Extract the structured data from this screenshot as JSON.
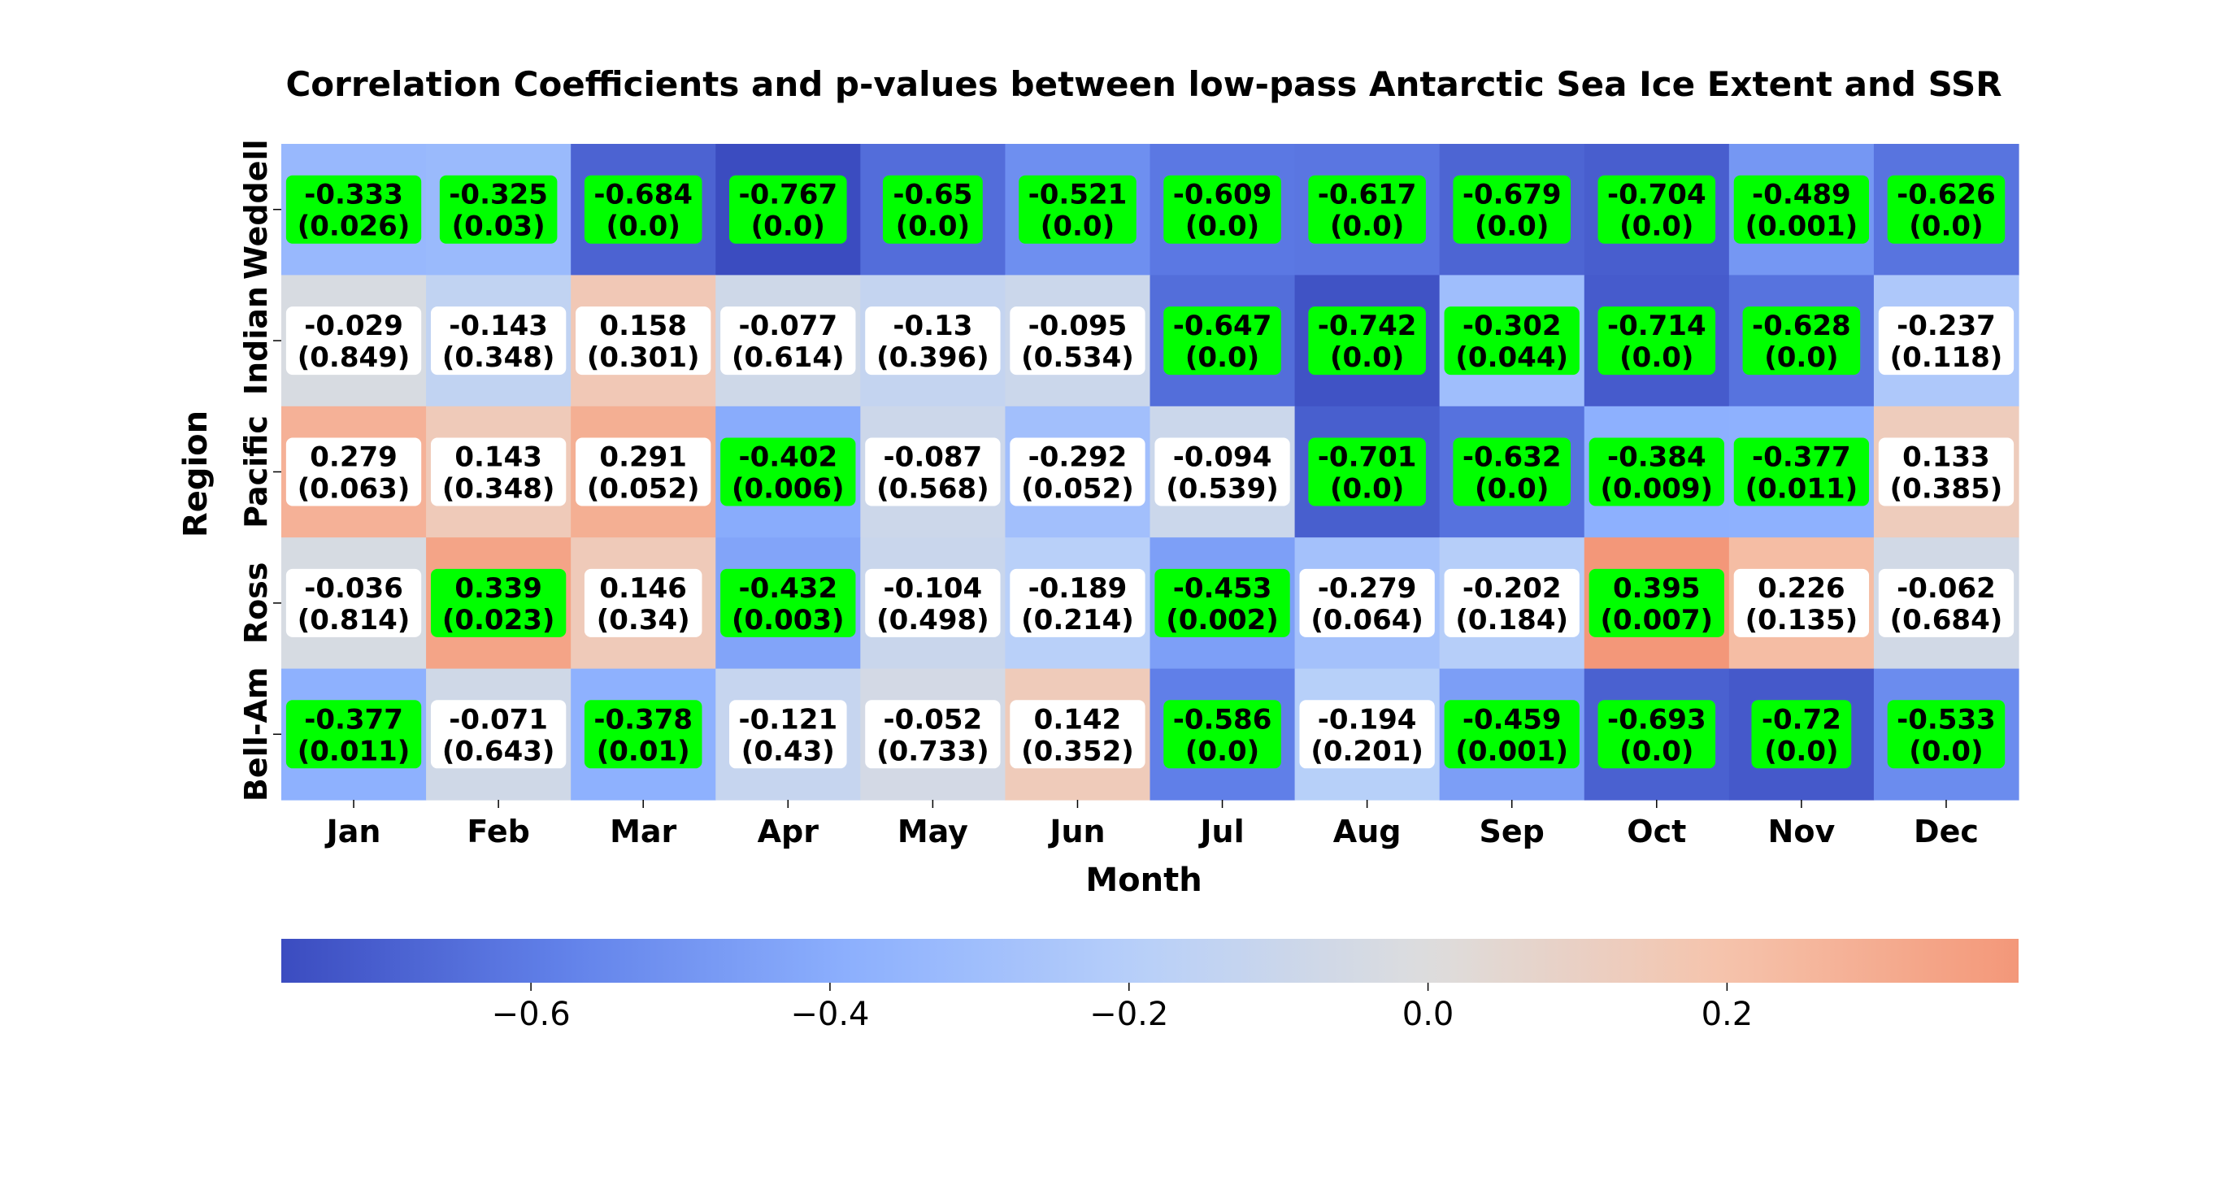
{
  "chart_data": {
    "type": "heatmap",
    "title": "Correlation Coefficients and p-values between low-pass Antarctic Sea Ice Extent and SSR",
    "xlabel": "Month",
    "ylabel": "Region",
    "x_categories": [
      "Jan",
      "Feb",
      "Mar",
      "Apr",
      "May",
      "Jun",
      "Jul",
      "Aug",
      "Sep",
      "Oct",
      "Nov",
      "Dec"
    ],
    "y_categories": [
      "Weddell",
      "Indian",
      "Pacific",
      "Ross",
      "Bell-Am"
    ],
    "correlation": [
      [
        -0.333,
        -0.325,
        -0.684,
        -0.767,
        -0.65,
        -0.521,
        -0.609,
        -0.617,
        -0.679,
        -0.704,
        -0.489,
        -0.626
      ],
      [
        -0.029,
        -0.143,
        0.158,
        -0.077,
        -0.13,
        -0.095,
        -0.647,
        -0.742,
        -0.302,
        -0.714,
        -0.628,
        -0.237
      ],
      [
        0.279,
        0.143,
        0.291,
        -0.402,
        -0.087,
        -0.292,
        -0.094,
        -0.701,
        -0.632,
        -0.384,
        -0.377,
        0.133
      ],
      [
        -0.036,
        0.339,
        0.146,
        -0.432,
        -0.104,
        -0.189,
        -0.453,
        -0.279,
        -0.202,
        0.395,
        0.226,
        -0.062
      ],
      [
        -0.377,
        -0.071,
        -0.378,
        -0.121,
        -0.052,
        0.142,
        -0.586,
        -0.194,
        -0.459,
        -0.693,
        -0.72,
        -0.533
      ]
    ],
    "cell_labels_r": [
      [
        "-0.333",
        "-0.325",
        "-0.684",
        "-0.767",
        "-0.65",
        "-0.521",
        "-0.609",
        "-0.617",
        "-0.679",
        "-0.704",
        "-0.489",
        "-0.626"
      ],
      [
        "-0.029",
        "-0.143",
        "0.158",
        "-0.077",
        "-0.13",
        "-0.095",
        "-0.647",
        "-0.742",
        "-0.302",
        "-0.714",
        "-0.628",
        "-0.237"
      ],
      [
        "0.279",
        "0.143",
        "0.291",
        "-0.402",
        "-0.087",
        "-0.292",
        "-0.094",
        "-0.701",
        "-0.632",
        "-0.384",
        "-0.377",
        "0.133"
      ],
      [
        "-0.036",
        "0.339",
        "0.146",
        "-0.432",
        "-0.104",
        "-0.189",
        "-0.453",
        "-0.279",
        "-0.202",
        "0.395",
        "0.226",
        "-0.062"
      ],
      [
        "-0.377",
        "-0.071",
        "-0.378",
        "-0.121",
        "-0.052",
        "0.142",
        "-0.586",
        "-0.194",
        "-0.459",
        "-0.693",
        "-0.72",
        "-0.533"
      ]
    ],
    "cell_labels_p": [
      [
        "(0.026)",
        "(0.03)",
        "(0.0)",
        "(0.0)",
        "(0.0)",
        "(0.0)",
        "(0.0)",
        "(0.0)",
        "(0.0)",
        "(0.0)",
        "(0.001)",
        "(0.0)"
      ],
      [
        "(0.849)",
        "(0.348)",
        "(0.301)",
        "(0.614)",
        "(0.396)",
        "(0.534)",
        "(0.0)",
        "(0.0)",
        "(0.044)",
        "(0.0)",
        "(0.0)",
        "(0.118)"
      ],
      [
        "(0.063)",
        "(0.348)",
        "(0.052)",
        "(0.006)",
        "(0.568)",
        "(0.052)",
        "(0.539)",
        "(0.0)",
        "(0.0)",
        "(0.009)",
        "(0.011)",
        "(0.385)"
      ],
      [
        "(0.814)",
        "(0.023)",
        "(0.34)",
        "(0.003)",
        "(0.498)",
        "(0.214)",
        "(0.002)",
        "(0.064)",
        "(0.184)",
        "(0.007)",
        "(0.135)",
        "(0.684)"
      ],
      [
        "(0.011)",
        "(0.643)",
        "(0.01)",
        "(0.43)",
        "(0.733)",
        "(0.352)",
        "(0.0)",
        "(0.201)",
        "(0.001)",
        "(0.0)",
        "(0.0)",
        "(0.0)"
      ]
    ],
    "p_values": [
      [
        0.026,
        0.03,
        0.0,
        0.0,
        0.0,
        0.0,
        0.0,
        0.0,
        0.0,
        0.0,
        0.001,
        0.0
      ],
      [
        0.849,
        0.348,
        0.301,
        0.614,
        0.396,
        0.534,
        0.0,
        0.0,
        0.044,
        0.0,
        0.0,
        0.118
      ],
      [
        0.063,
        0.348,
        0.052,
        0.006,
        0.568,
        0.052,
        0.539,
        0.0,
        0.0,
        0.009,
        0.011,
        0.385
      ],
      [
        0.814,
        0.023,
        0.34,
        0.003,
        0.498,
        0.214,
        0.002,
        0.064,
        0.184,
        0.007,
        0.135,
        0.684
      ],
      [
        0.011,
        0.643,
        0.01,
        0.43,
        0.733,
        0.352,
        0.0,
        0.201,
        0.001,
        0.0,
        0.0,
        0.0
      ]
    ],
    "significance_threshold": 0.05,
    "colormap": "coolwarm",
    "vmin": -0.767,
    "vmax": 0.395,
    "colorbar": {
      "orientation": "horizontal",
      "placement": "bottom",
      "ticks": [
        -0.6,
        -0.4,
        -0.2,
        0.0,
        0.2
      ],
      "tick_labels": [
        "−0.6",
        "−0.4",
        "−0.2",
        "0.0",
        "0.2"
      ]
    },
    "significant_box_color": "#00ff00",
    "nonsignificant_box_color": "#ffffff"
  }
}
